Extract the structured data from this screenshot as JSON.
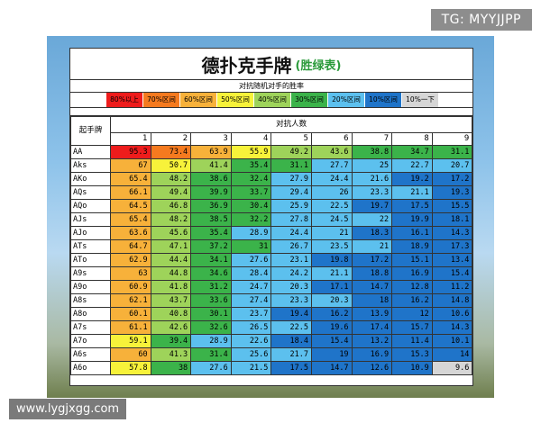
{
  "watermark_top": "TG: MYYJJPP",
  "watermark_bottom": "www.lygjxgg.com",
  "title": "德扑克手牌",
  "subtitle": "(胜绿表)",
  "caption": "对抗随机对手的胜率",
  "legend": [
    {
      "label": "80%以上",
      "color": "#ee1c1c"
    },
    {
      "label": "70%区间",
      "color": "#f57a1f"
    },
    {
      "label": "60%区间",
      "color": "#f7b13a"
    },
    {
      "label": "50%区间",
      "color": "#f7f23a"
    },
    {
      "label": "40%区间",
      "color": "#9ed35a"
    },
    {
      "label": "30%区间",
      "color": "#3bb34a"
    },
    {
      "label": "20%区间",
      "color": "#5cc0ee"
    },
    {
      "label": "10%区间",
      "color": "#1f74c9"
    },
    {
      "label": "10%一下",
      "color": "#d6d6d6"
    }
  ],
  "table": {
    "row_header": "起手牌",
    "col_group_header": "对抗人数",
    "opponents": [
      "1",
      "2",
      "3",
      "4",
      "5",
      "6",
      "7",
      "8",
      "9"
    ],
    "rows": [
      {
        "hand": "AA",
        "values": [
          "95.3",
          "73.4",
          "63.9",
          "55.9",
          "49.2",
          "43.6",
          "38.8",
          "34.7",
          "31.1"
        ]
      },
      {
        "hand": "Aks",
        "values": [
          "67",
          "50.7",
          "41.4",
          "35.4",
          "31.1",
          "27.7",
          "25",
          "22.7",
          "20.7"
        ]
      },
      {
        "hand": "AKo",
        "values": [
          "65.4",
          "48.2",
          "38.6",
          "32.4",
          "27.9",
          "24.4",
          "21.6",
          "19.2",
          "17.2"
        ]
      },
      {
        "hand": "AQs",
        "values": [
          "66.1",
          "49.4",
          "39.9",
          "33.7",
          "29.4",
          "26",
          "23.3",
          "21.1",
          "19.3"
        ]
      },
      {
        "hand": "AQo",
        "values": [
          "64.5",
          "46.8",
          "36.9",
          "30.4",
          "25.9",
          "22.5",
          "19.7",
          "17.5",
          "15.5"
        ]
      },
      {
        "hand": "AJs",
        "values": [
          "65.4",
          "48.2",
          "38.5",
          "32.2",
          "27.8",
          "24.5",
          "22",
          "19.9",
          "18.1"
        ]
      },
      {
        "hand": "AJo",
        "values": [
          "63.6",
          "45.6",
          "35.4",
          "28.9",
          "24.4",
          "21",
          "18.3",
          "16.1",
          "14.3"
        ]
      },
      {
        "hand": "ATs",
        "values": [
          "64.7",
          "47.1",
          "37.2",
          "31",
          "26.7",
          "23.5",
          "21",
          "18.9",
          "17.3"
        ]
      },
      {
        "hand": "ATo",
        "values": [
          "62.9",
          "44.4",
          "34.1",
          "27.6",
          "23.1",
          "19.8",
          "17.2",
          "15.1",
          "13.4"
        ]
      },
      {
        "hand": "A9s",
        "values": [
          "63",
          "44.8",
          "34.6",
          "28.4",
          "24.2",
          "21.1",
          "18.8",
          "16.9",
          "15.4"
        ]
      },
      {
        "hand": "A9o",
        "values": [
          "60.9",
          "41.8",
          "31.2",
          "24.7",
          "20.3",
          "17.1",
          "14.7",
          "12.8",
          "11.2"
        ]
      },
      {
        "hand": "A8s",
        "values": [
          "62.1",
          "43.7",
          "33.6",
          "27.4",
          "23.3",
          "20.3",
          "18",
          "16.2",
          "14.8"
        ]
      },
      {
        "hand": "A8o",
        "values": [
          "60.1",
          "40.8",
          "30.1",
          "23.7",
          "19.4",
          "16.2",
          "13.9",
          "12",
          "10.6"
        ]
      },
      {
        "hand": "A7s",
        "values": [
          "61.1",
          "42.6",
          "32.6",
          "26.5",
          "22.5",
          "19.6",
          "17.4",
          "15.7",
          "14.3"
        ]
      },
      {
        "hand": "A7o",
        "values": [
          "59.1",
          "39.4",
          "28.9",
          "22.6",
          "18.4",
          "15.4",
          "13.2",
          "11.4",
          "10.1"
        ]
      },
      {
        "hand": "A6s",
        "values": [
          "60",
          "41.3",
          "31.4",
          "25.6",
          "21.7",
          "19",
          "16.9",
          "15.3",
          "14"
        ]
      },
      {
        "hand": "A6o",
        "values": [
          "57.8",
          "38",
          "27.6",
          "21.5",
          "17.5",
          "14.7",
          "12.6",
          "10.9",
          "9.6"
        ]
      }
    ]
  }
}
